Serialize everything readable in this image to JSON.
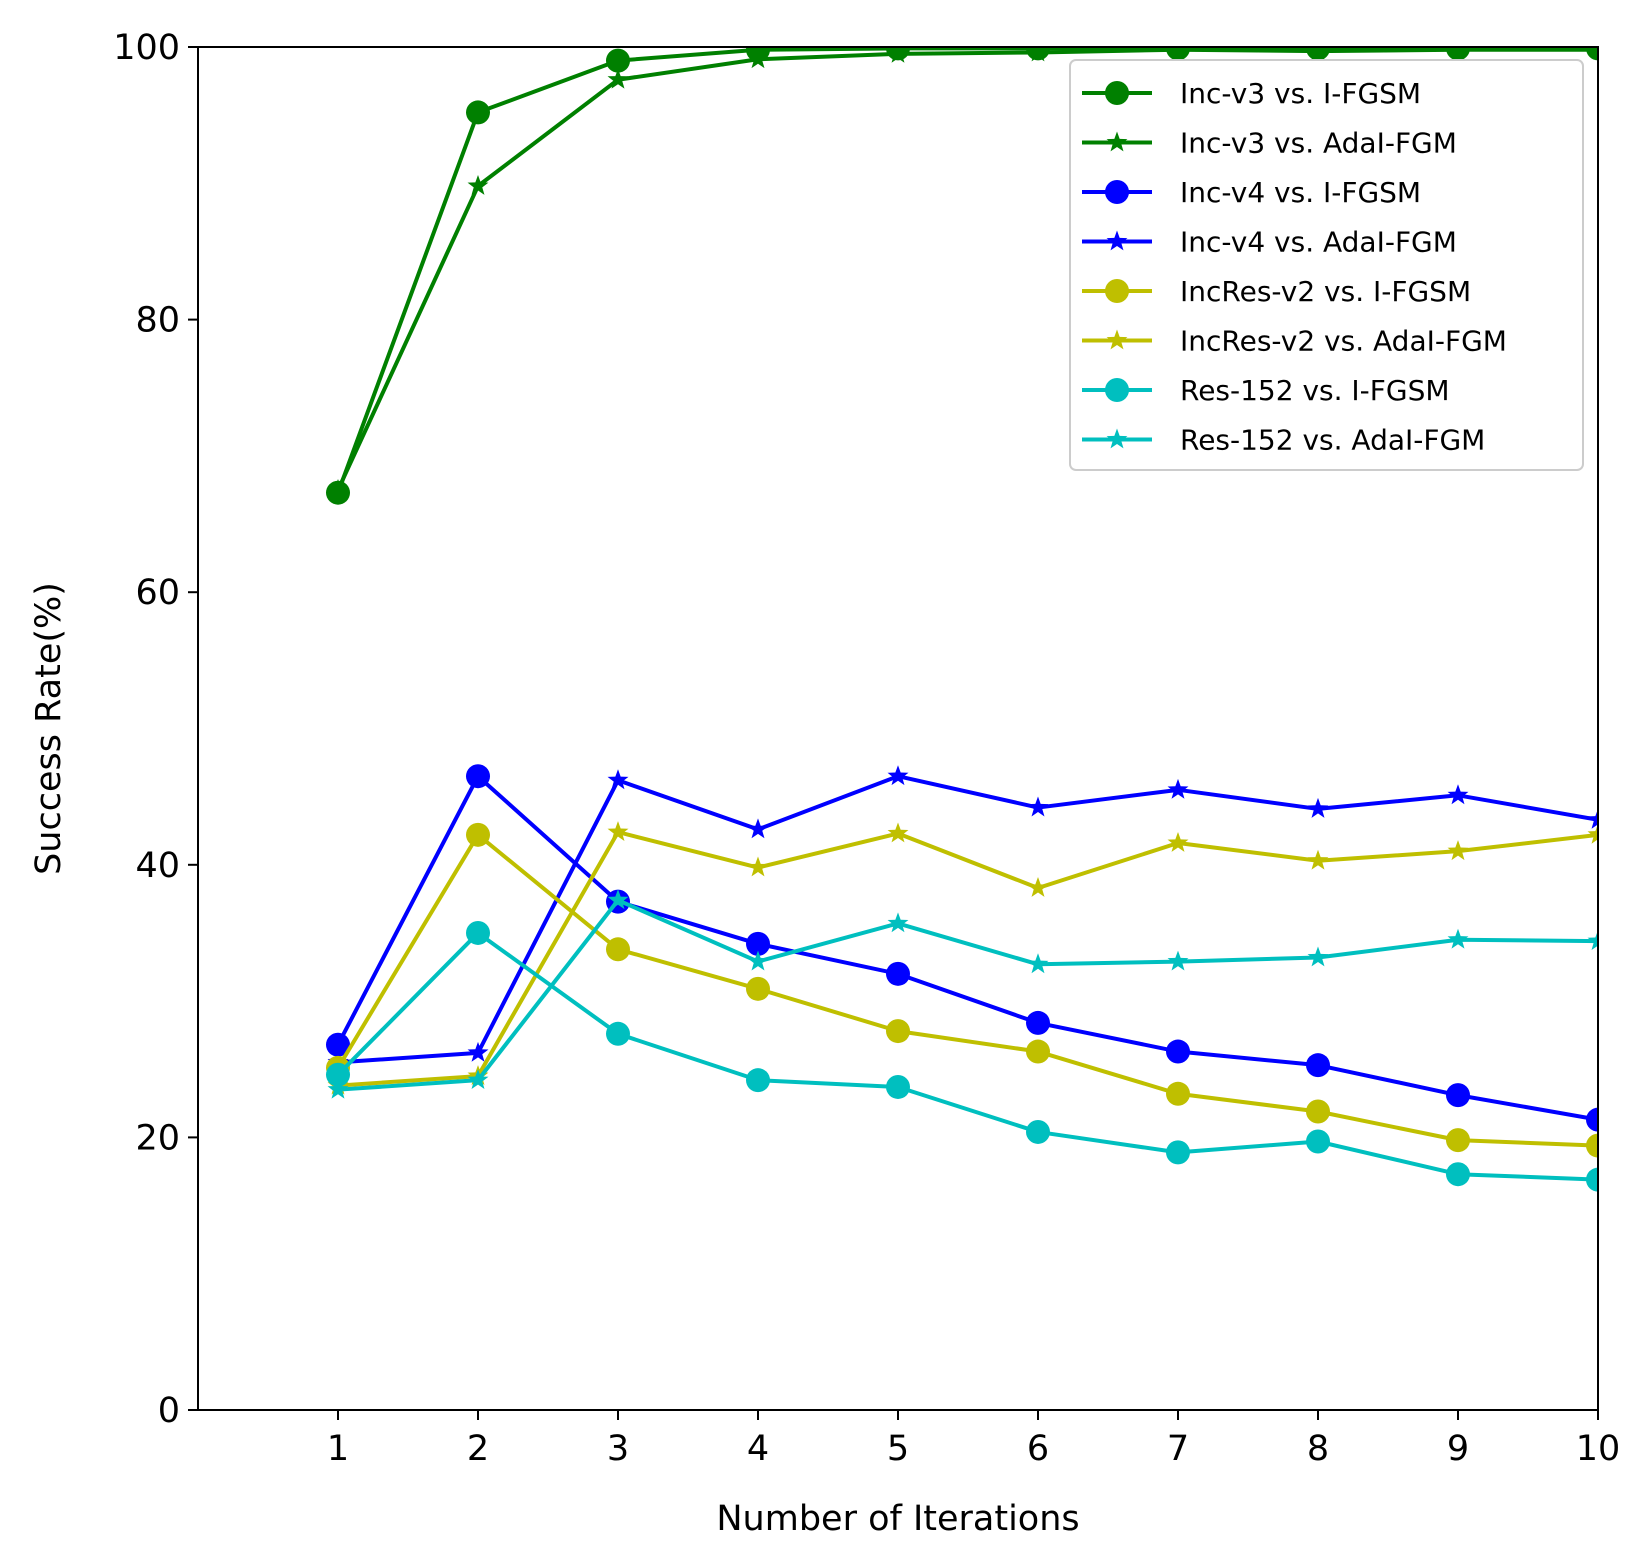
{
  "chart_data": {
    "type": "line",
    "title": "",
    "xlabel": "Number of Iterations",
    "ylabel": "Success Rate(%)",
    "x": [
      1,
      2,
      3,
      4,
      5,
      6,
      7,
      8,
      9,
      10
    ],
    "xlim": [
      0,
      10
    ],
    "ylim": [
      0,
      100
    ],
    "xticks": [
      1,
      2,
      3,
      4,
      5,
      6,
      7,
      8,
      9,
      10
    ],
    "yticks": [
      0,
      20,
      40,
      60,
      80,
      100
    ],
    "grid": false,
    "legend_position": "top-right",
    "series": [
      {
        "name": "Inc-v3 vs. I-FGSM",
        "color": "#008000",
        "marker": "circle",
        "values": [
          67.3,
          95.2,
          99.0,
          99.8,
          99.9,
          99.9,
          99.9,
          99.9,
          99.9,
          99.9
        ]
      },
      {
        "name": "Inc-v3 vs. AdaI-FGM",
        "color": "#008000",
        "marker": "star",
        "values": [
          67.5,
          89.8,
          97.6,
          99.1,
          99.5,
          99.6,
          99.8,
          99.7,
          99.8,
          99.8
        ]
      },
      {
        "name": "Inc-v4 vs. I-FGSM",
        "color": "#0000ff",
        "marker": "circle",
        "values": [
          26.8,
          46.5,
          37.3,
          34.2,
          32.0,
          28.4,
          26.3,
          25.3,
          23.1,
          21.3
        ]
      },
      {
        "name": "Inc-v4 vs. AdaI-FGM",
        "color": "#0000ff",
        "marker": "star",
        "values": [
          25.5,
          26.2,
          46.2,
          42.6,
          46.5,
          44.2,
          45.5,
          44.1,
          45.1,
          43.3
        ]
      },
      {
        "name": "IncRes-v2 vs. I-FGSM",
        "color": "#bfbf00",
        "marker": "circle",
        "values": [
          25.1,
          42.2,
          33.8,
          30.9,
          27.8,
          26.3,
          23.2,
          21.9,
          19.8,
          19.4
        ]
      },
      {
        "name": "IncRes-v2 vs. AdaI-FGM",
        "color": "#bfbf00",
        "marker": "star",
        "values": [
          23.8,
          24.5,
          42.4,
          39.8,
          42.3,
          38.3,
          41.6,
          40.3,
          41.0,
          42.2
        ]
      },
      {
        "name": "Res-152 vs. I-FGSM",
        "color": "#00bfbf",
        "marker": "circle",
        "values": [
          24.6,
          35.0,
          27.6,
          24.2,
          23.7,
          20.4,
          18.9,
          19.7,
          17.3,
          16.9
        ]
      },
      {
        "name": "Res-152 vs. AdaI-FGM",
        "color": "#00bfbf",
        "marker": "star",
        "values": [
          23.5,
          24.2,
          37.4,
          32.9,
          35.7,
          32.7,
          32.9,
          33.2,
          34.5,
          34.4
        ]
      }
    ]
  }
}
